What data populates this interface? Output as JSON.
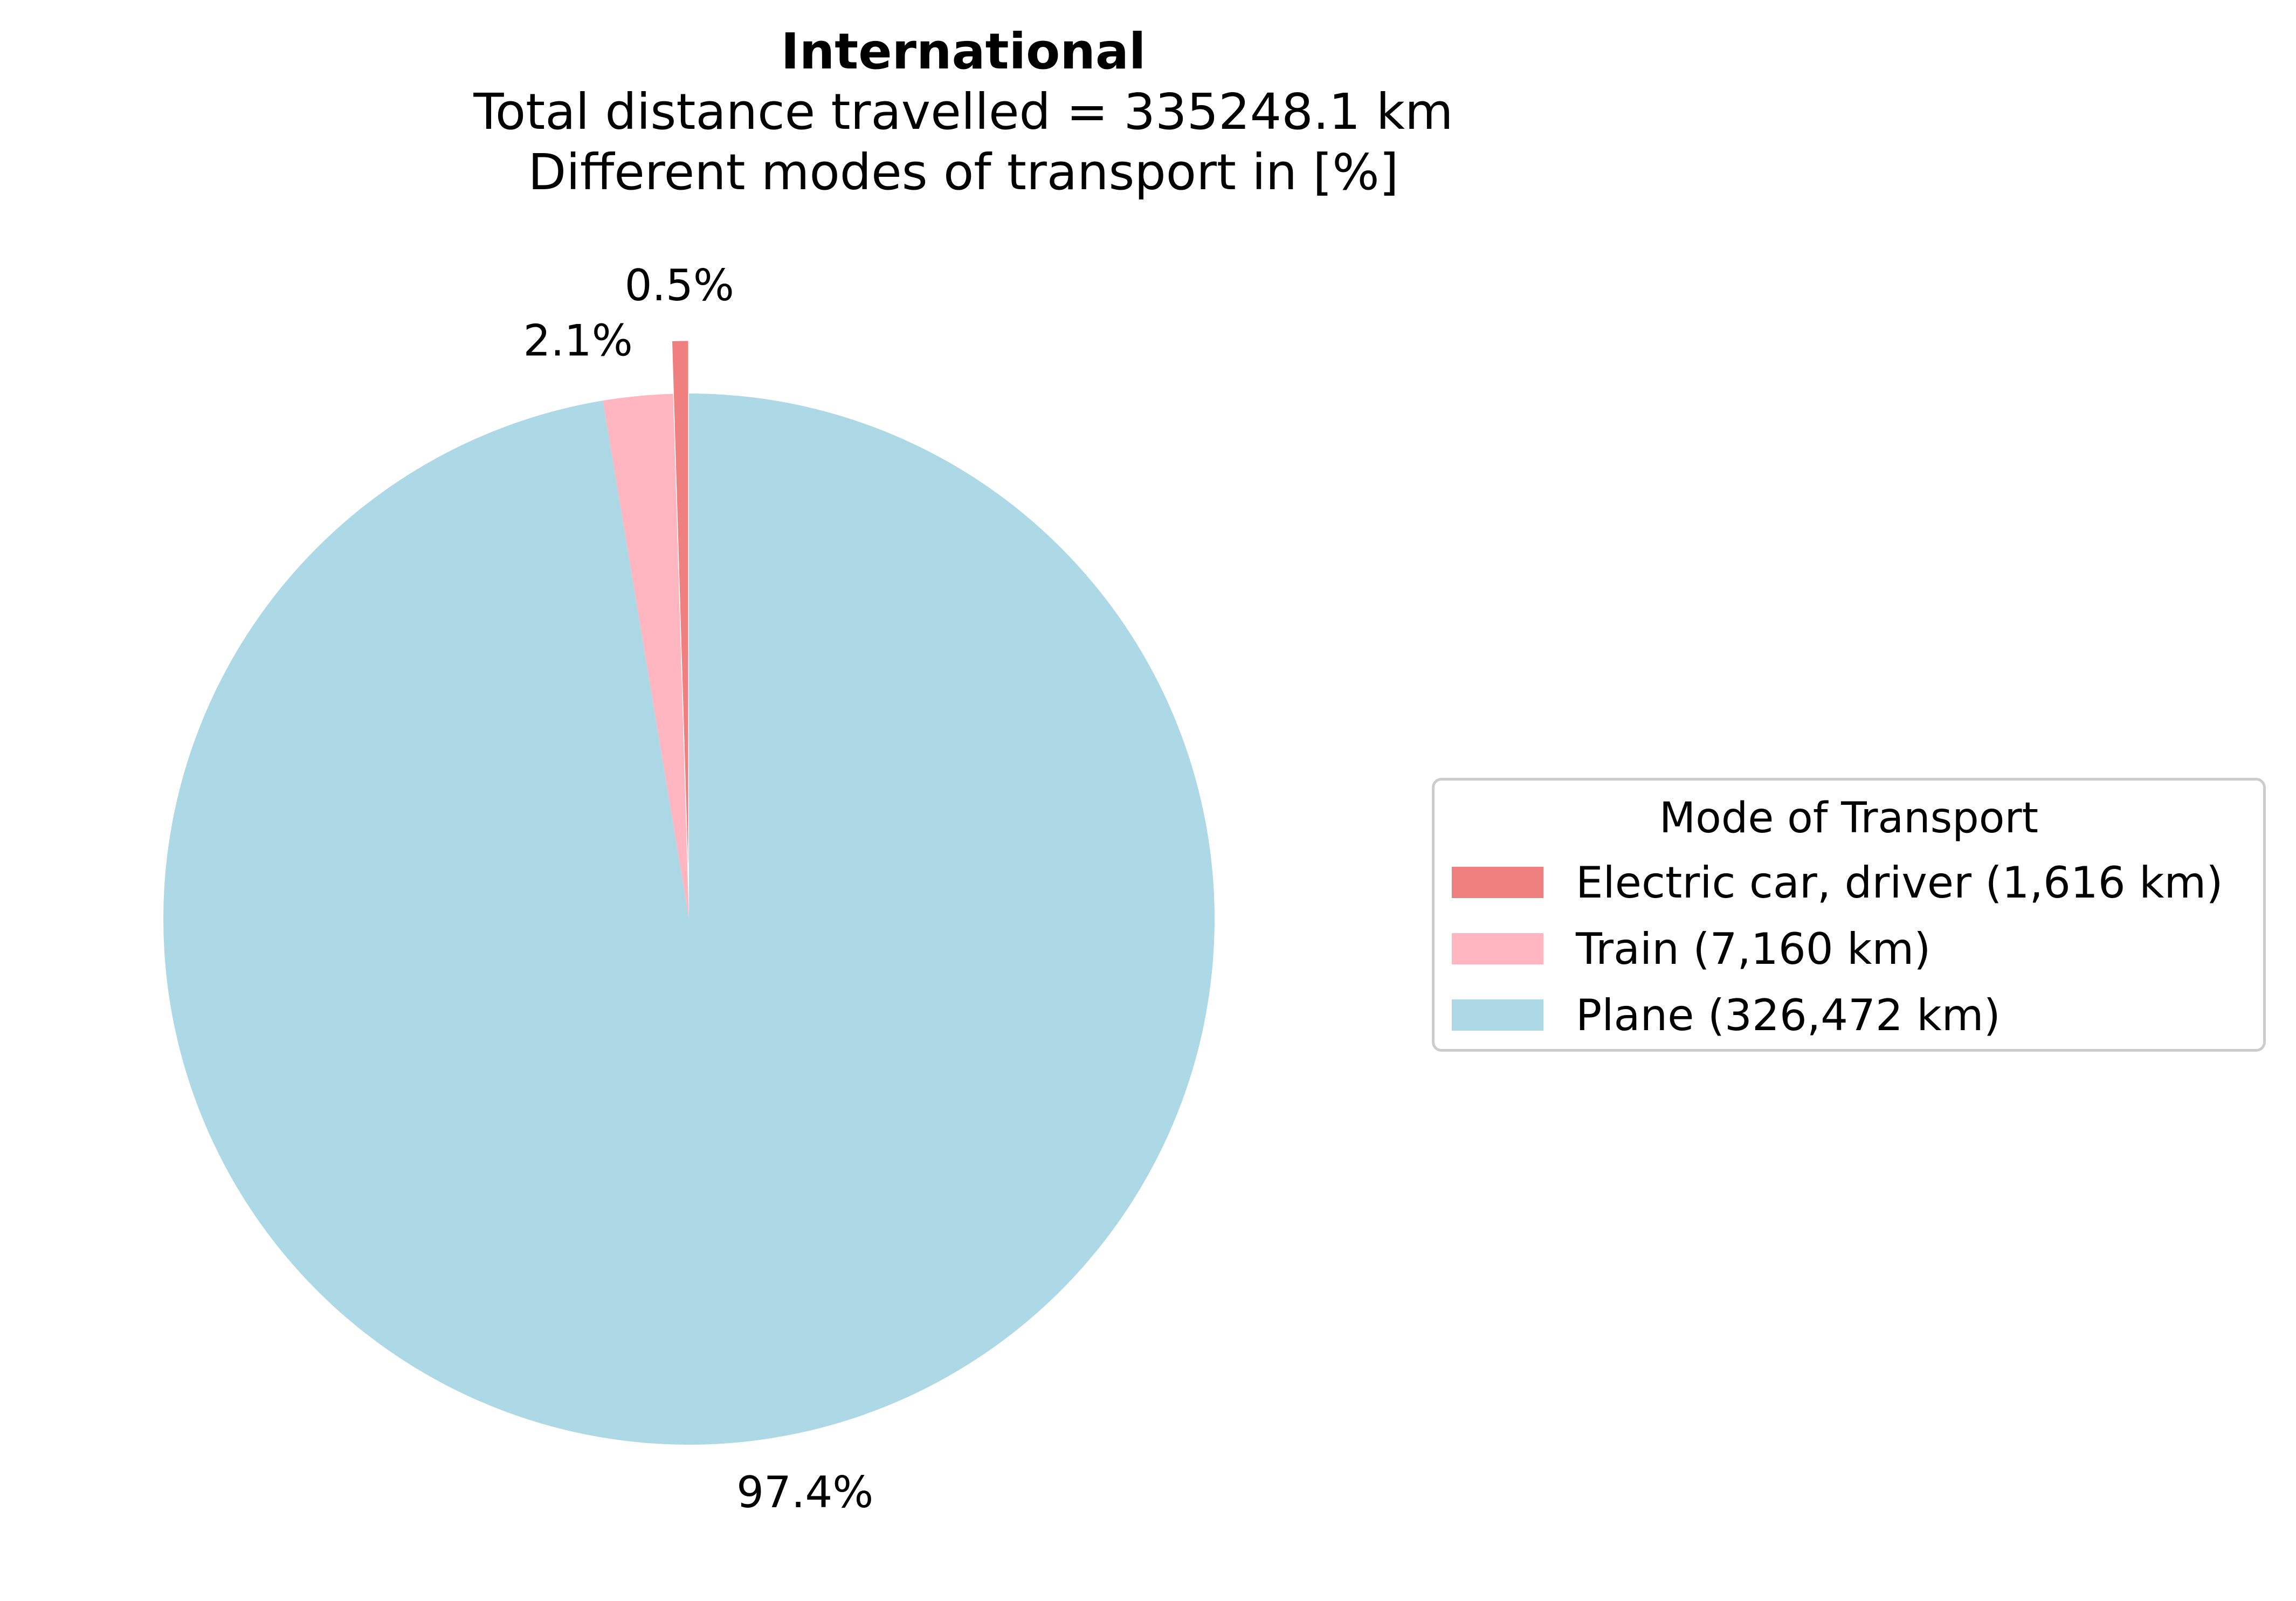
{
  "chart_data": {
    "type": "pie",
    "title": "International",
    "subtitle_lines": [
      "Total distance travelled = 335248.1 km",
      "Different modes of transport in [%]"
    ],
    "slices": [
      {
        "name": "Electric car, driver",
        "value_km": 1616,
        "percent_label": "0.5%",
        "legend_label": "Electric car, driver (1,616 km)",
        "color": "#f08080"
      },
      {
        "name": "Train",
        "value_km": 7160,
        "percent_label": "2.1%",
        "legend_label": "Train (7,160 km)",
        "color": "#ffb6c1"
      },
      {
        "name": "Plane",
        "value_km": 326472,
        "percent_label": "97.4%",
        "legend_label": "Plane (326,472 km)",
        "color": "#add8e6"
      }
    ],
    "legend": {
      "title": "Mode of Transport",
      "placement": "right"
    },
    "start_angle_direction": "top, counter-clockwise",
    "exploded_slice": "Electric car, driver"
  }
}
